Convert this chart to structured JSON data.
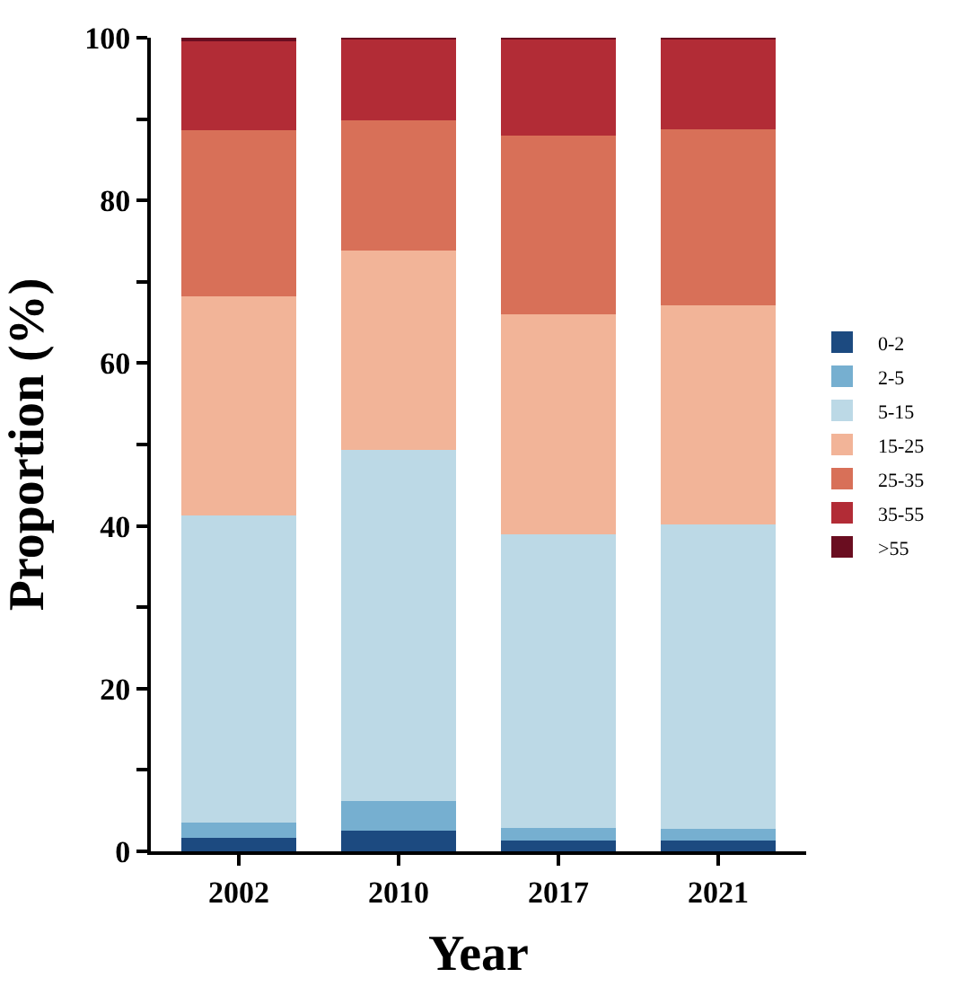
{
  "chart_data": {
    "type": "bar",
    "stacked": true,
    "xlabel": "Year",
    "ylabel": "Proportion (%)",
    "categories": [
      "2002",
      "2010",
      "2017",
      "2021"
    ],
    "series": [
      {
        "name": "0-2",
        "color": "#1c4a80",
        "values": [
          1.7,
          2.5,
          1.3,
          1.3
        ]
      },
      {
        "name": "2-5",
        "color": "#76afd0",
        "values": [
          1.8,
          3.7,
          1.6,
          1.5
        ]
      },
      {
        "name": "5-15",
        "color": "#bcd9e6",
        "values": [
          37.8,
          43.1,
          36.1,
          37.4
        ]
      },
      {
        "name": "15-25",
        "color": "#f2b498",
        "values": [
          26.9,
          24.5,
          27.0,
          26.9
        ]
      },
      {
        "name": "25-35",
        "color": "#d87058",
        "values": [
          20.4,
          16.0,
          22.0,
          21.6
        ]
      },
      {
        "name": "35-55",
        "color": "#b22c36",
        "values": [
          11.0,
          10.0,
          11.8,
          11.1
        ]
      },
      {
        "name": ">55",
        "color": "#6a0d20",
        "values": [
          0.4,
          0.2,
          0.2,
          0.2
        ]
      }
    ],
    "ylim": [
      0,
      100
    ],
    "yticks": [
      0,
      {
        "value": 10,
        "label": null
      },
      20,
      {
        "value": 30,
        "label": null
      },
      40,
      {
        "value": 50,
        "label": null
      },
      60,
      {
        "value": 70,
        "label": null
      },
      80,
      {
        "value": 90,
        "label": null
      },
      100
    ],
    "legend": "right"
  }
}
